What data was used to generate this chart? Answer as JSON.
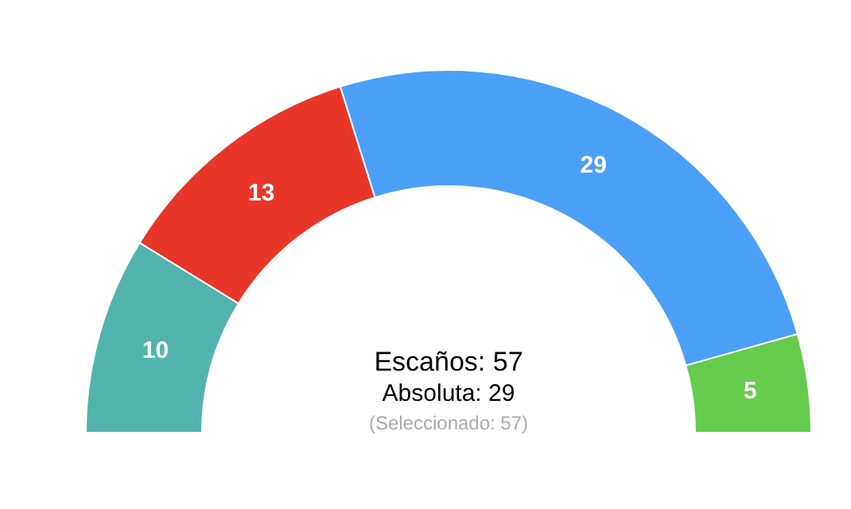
{
  "chart_data": {
    "type": "donut",
    "categories": [
      null,
      null,
      null,
      null
    ],
    "values": [
      10,
      13,
      29,
      5
    ],
    "colors": [
      "#52b3ae",
      "#e83728",
      "#4aa0f7",
      "#66cc4d"
    ],
    "data_labels": true,
    "annotations": [
      "Escaños: 57",
      "Absoluta: 29",
      "(Seleccionado: 57)"
    ]
  }
}
